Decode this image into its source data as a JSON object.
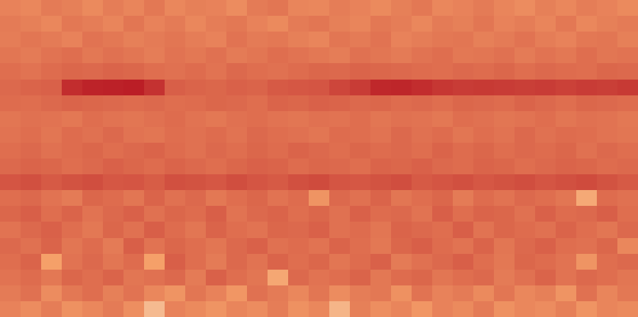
{
  "chart_data": {
    "type": "heatmap",
    "color": "Magma",
    "tick_labels": false,
    "zlim": [
      0,
      100
    ],
    "cells": [
      [
        52,
        50,
        55,
        53,
        49,
        54,
        51,
        56,
        50,
        53,
        52,
        48,
        55,
        57,
        51,
        50,
        54,
        52,
        49,
        53,
        56,
        50,
        52,
        55,
        51,
        48,
        53,
        50,
        54,
        52,
        49
      ],
      [
        55,
        53,
        50,
        56,
        54,
        51,
        57,
        52,
        55,
        50,
        54,
        56,
        52,
        49,
        55,
        57,
        53,
        51,
        56,
        54,
        50,
        55,
        53,
        57,
        52,
        54,
        51,
        56,
        50,
        53,
        55
      ],
      [
        54,
        57,
        55,
        52,
        58,
        56,
        53,
        55,
        57,
        54,
        52,
        58,
        55,
        56,
        53,
        51,
        57,
        55,
        58,
        52,
        54,
        56,
        57,
        53,
        55,
        58,
        54,
        52,
        56,
        57,
        53
      ],
      [
        57,
        55,
        58,
        60,
        56,
        59,
        57,
        54,
        58,
        56,
        59,
        55,
        57,
        60,
        58,
        56,
        54,
        59,
        57,
        55,
        58,
        60,
        56,
        57,
        59,
        55,
        58,
        56,
        60,
        57,
        58
      ],
      [
        60,
        58,
        61,
        63,
        62,
        64,
        63,
        60,
        59,
        61,
        58,
        62,
        60,
        59,
        61,
        63,
        62,
        64,
        63,
        62,
        61,
        60,
        62,
        61,
        63,
        60,
        62,
        61,
        60,
        63,
        62
      ],
      [
        62,
        64,
        65,
        86,
        90,
        91,
        92,
        84,
        66,
        64,
        63,
        65,
        64,
        68,
        69,
        70,
        76,
        80,
        88,
        89,
        86,
        82,
        80,
        81,
        80,
        79,
        80,
        78,
        80,
        79,
        81
      ],
      [
        61,
        60,
        62,
        64,
        63,
        62,
        61,
        62,
        60,
        61,
        63,
        62,
        60,
        64,
        63,
        65,
        64,
        62,
        63,
        61,
        62,
        60,
        63,
        62,
        61,
        64,
        62,
        60,
        63,
        62,
        61
      ],
      [
        57,
        59,
        58,
        56,
        60,
        58,
        57,
        59,
        61,
        58,
        56,
        59,
        60,
        58,
        57,
        59,
        58,
        60,
        57,
        59,
        58,
        56,
        60,
        59,
        57,
        58,
        60,
        57,
        59,
        58,
        56
      ],
      [
        58,
        60,
        57,
        61,
        59,
        62,
        58,
        57,
        60,
        59,
        61,
        58,
        62,
        60,
        59,
        57,
        61,
        60,
        58,
        62,
        59,
        61,
        57,
        60,
        58,
        62,
        59,
        61,
        60,
        58,
        57
      ],
      [
        60,
        62,
        59,
        61,
        63,
        60,
        62,
        64,
        61,
        59,
        62,
        60,
        63,
        61,
        64,
        62,
        60,
        63,
        61,
        62,
        60,
        64,
        61,
        63,
        60,
        62,
        61,
        63,
        59,
        62,
        60
      ],
      [
        62,
        64,
        63,
        60,
        62,
        65,
        63,
        61,
        64,
        62,
        60,
        63,
        65,
        64,
        61,
        63,
        62,
        60,
        64,
        63,
        65,
        62,
        61,
        64,
        63,
        60,
        62,
        64,
        63,
        61,
        62
      ],
      [
        70,
        72,
        68,
        71,
        73,
        69,
        70,
        67,
        72,
        71,
        69,
        73,
        70,
        68,
        72,
        74,
        70,
        69,
        71,
        73,
        68,
        70,
        72,
        69,
        71,
        73,
        70,
        72,
        74,
        71,
        68
      ],
      [
        60,
        62,
        58,
        55,
        63,
        61,
        57,
        64,
        59,
        62,
        56,
        60,
        63,
        58,
        61,
        45,
        62,
        59,
        64,
        57,
        60,
        63,
        55,
        61,
        58,
        62,
        60,
        57,
        35,
        61,
        59
      ],
      [
        63,
        66,
        60,
        64,
        58,
        62,
        65,
        59,
        63,
        61,
        66,
        58,
        62,
        64,
        60,
        63,
        59,
        65,
        61,
        62,
        58,
        66,
        60,
        64,
        63,
        59,
        65,
        61,
        62,
        66,
        60
      ],
      [
        58,
        62,
        65,
        60,
        56,
        63,
        59,
        66,
        61,
        57,
        64,
        60,
        58,
        63,
        62,
        65,
        59,
        61,
        57,
        64,
        62,
        60,
        66,
        58,
        63,
        61,
        59,
        64,
        60,
        57,
        62
      ],
      [
        62,
        59,
        64,
        57,
        61,
        55,
        66,
        58,
        63,
        60,
        57,
        62,
        65,
        59,
        61,
        58,
        64,
        60,
        56,
        63,
        66,
        61,
        58,
        64,
        57,
        62,
        65,
        60,
        59,
        63,
        50
      ],
      [
        60,
        64,
        40,
        58,
        62,
        57,
        61,
        40,
        66,
        60,
        55,
        62,
        58,
        64,
        60,
        63,
        57,
        61,
        65,
        55,
        59,
        62,
        66,
        60,
        56,
        63,
        61,
        58,
        45,
        60,
        62
      ],
      [
        58,
        61,
        56,
        63,
        60,
        64,
        57,
        59,
        62,
        55,
        65,
        60,
        57,
        36,
        62,
        58,
        60,
        64,
        56,
        61,
        63,
        57,
        60,
        62,
        55,
        59,
        64,
        58,
        62,
        60,
        57
      ],
      [
        55,
        59,
        48,
        56,
        60,
        53,
        58,
        50,
        45,
        57,
        52,
        44,
        59,
        55,
        50,
        57,
        48,
        54,
        56,
        46,
        58,
        52,
        55,
        49,
        57,
        50,
        53,
        45,
        59,
        51,
        56
      ],
      [
        52,
        48,
        54,
        46,
        50,
        55,
        47,
        25,
        52,
        49,
        45,
        51,
        48,
        54,
        46,
        50,
        28,
        53,
        47,
        51,
        44,
        52,
        49,
        55,
        46,
        50,
        48,
        53,
        45,
        51,
        49
      ]
    ]
  }
}
